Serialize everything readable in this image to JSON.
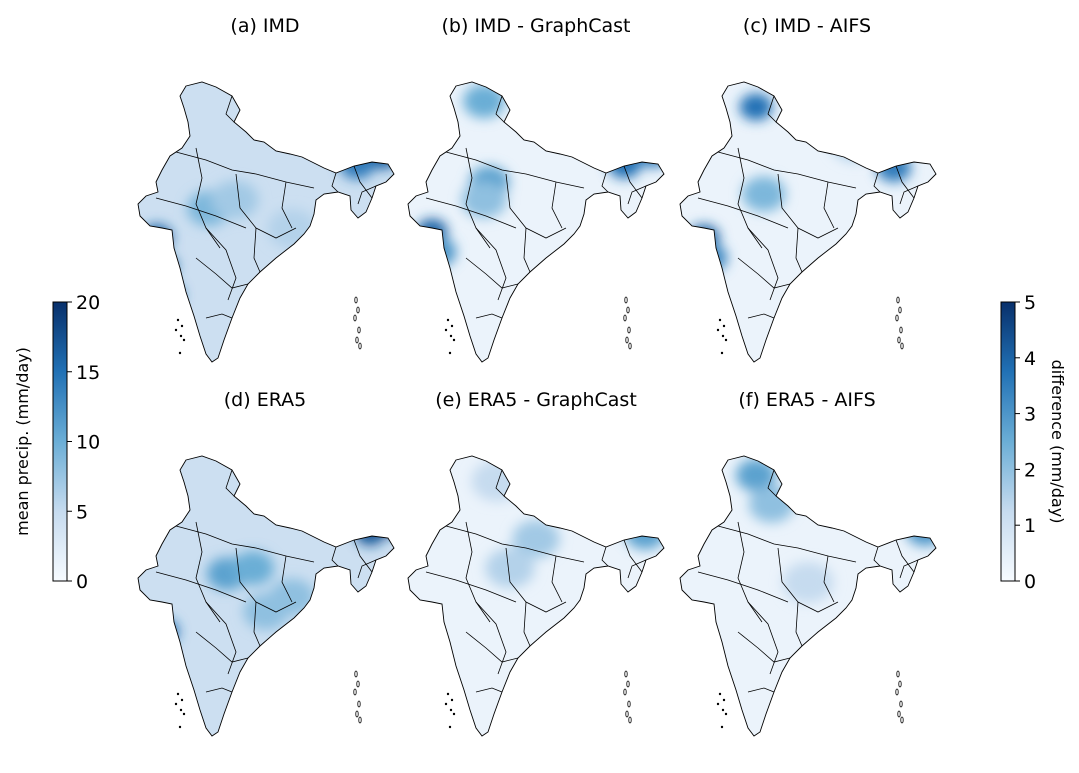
{
  "chart_data": {
    "type": "heatmap",
    "description_kind": "choropleth-style precipitation maps of India",
    "panels": [
      {
        "id": "a",
        "title": "(a) IMD",
        "scale": "mean",
        "hotspots": [
          [
            0.08,
            0.55,
            0.8
          ],
          [
            0.1,
            0.65,
            0.85
          ],
          [
            0.12,
            0.75,
            0.8
          ],
          [
            0.28,
            0.45,
            0.45
          ],
          [
            0.38,
            0.42,
            0.35
          ],
          [
            0.85,
            0.3,
            0.7
          ],
          [
            0.95,
            0.27,
            0.8
          ],
          [
            0.6,
            0.52,
            0.3
          ]
        ]
      },
      {
        "id": "b",
        "title": "(b) IMD - GraphCast",
        "scale": "diff",
        "hotspots": [
          [
            0.1,
            0.53,
            0.8
          ],
          [
            0.12,
            0.6,
            0.6
          ],
          [
            0.32,
            0.36,
            0.55
          ],
          [
            0.3,
            0.42,
            0.4
          ],
          [
            0.84,
            0.3,
            0.75
          ],
          [
            0.95,
            0.26,
            0.7
          ],
          [
            0.3,
            0.08,
            0.5
          ]
        ]
      },
      {
        "id": "c",
        "title": "(c) IMD - AIFS",
        "scale": "diff",
        "hotspots": [
          [
            0.1,
            0.55,
            0.8
          ],
          [
            0.12,
            0.62,
            0.65
          ],
          [
            0.3,
            0.1,
            0.75
          ],
          [
            0.33,
            0.4,
            0.45
          ],
          [
            0.83,
            0.31,
            0.7
          ],
          [
            0.68,
            0.22,
            0.3
          ]
        ]
      },
      {
        "id": "d",
        "title": "(d) ERA5",
        "scale": "mean",
        "hotspots": [
          [
            0.1,
            0.62,
            0.75
          ],
          [
            0.35,
            0.42,
            0.55
          ],
          [
            0.45,
            0.4,
            0.5
          ],
          [
            0.9,
            0.28,
            0.85
          ],
          [
            0.97,
            0.25,
            0.9
          ],
          [
            0.6,
            0.5,
            0.4
          ],
          [
            0.5,
            0.55,
            0.4
          ]
        ]
      },
      {
        "id": "e",
        "title": "(e) ERA5 - GraphCast",
        "scale": "diff",
        "hotspots": [
          [
            0.5,
            0.3,
            0.35
          ],
          [
            0.4,
            0.4,
            0.3
          ],
          [
            0.92,
            0.28,
            0.55
          ],
          [
            0.35,
            0.1,
            0.25
          ]
        ]
      },
      {
        "id": "f",
        "title": "(f) ERA5 - AIFS",
        "scale": "diff",
        "hotspots": [
          [
            0.3,
            0.08,
            0.55
          ],
          [
            0.95,
            0.27,
            0.6
          ],
          [
            0.5,
            0.45,
            0.25
          ],
          [
            0.36,
            0.18,
            0.4
          ]
        ]
      }
    ],
    "colorbars": [
      {
        "id": "mean",
        "label": "mean precip. (mm/day)",
        "range": [
          0,
          20
        ],
        "ticks": [
          "0",
          "5",
          "10",
          "15",
          "20"
        ],
        "tick_values": [
          0,
          5,
          10,
          15,
          20
        ],
        "cmap": "Blues"
      },
      {
        "id": "diff",
        "label": "difference (mm/day)",
        "range": [
          0,
          5
        ],
        "ticks": [
          "0",
          "1",
          "2",
          "3",
          "4",
          "5"
        ],
        "tick_values": [
          0,
          1,
          2,
          3,
          4,
          5
        ],
        "cmap": "Blues"
      }
    ],
    "colors": {
      "low": "#f7fbff",
      "mid": "#6baed6",
      "high": "#08306b",
      "border": "#000000"
    }
  }
}
